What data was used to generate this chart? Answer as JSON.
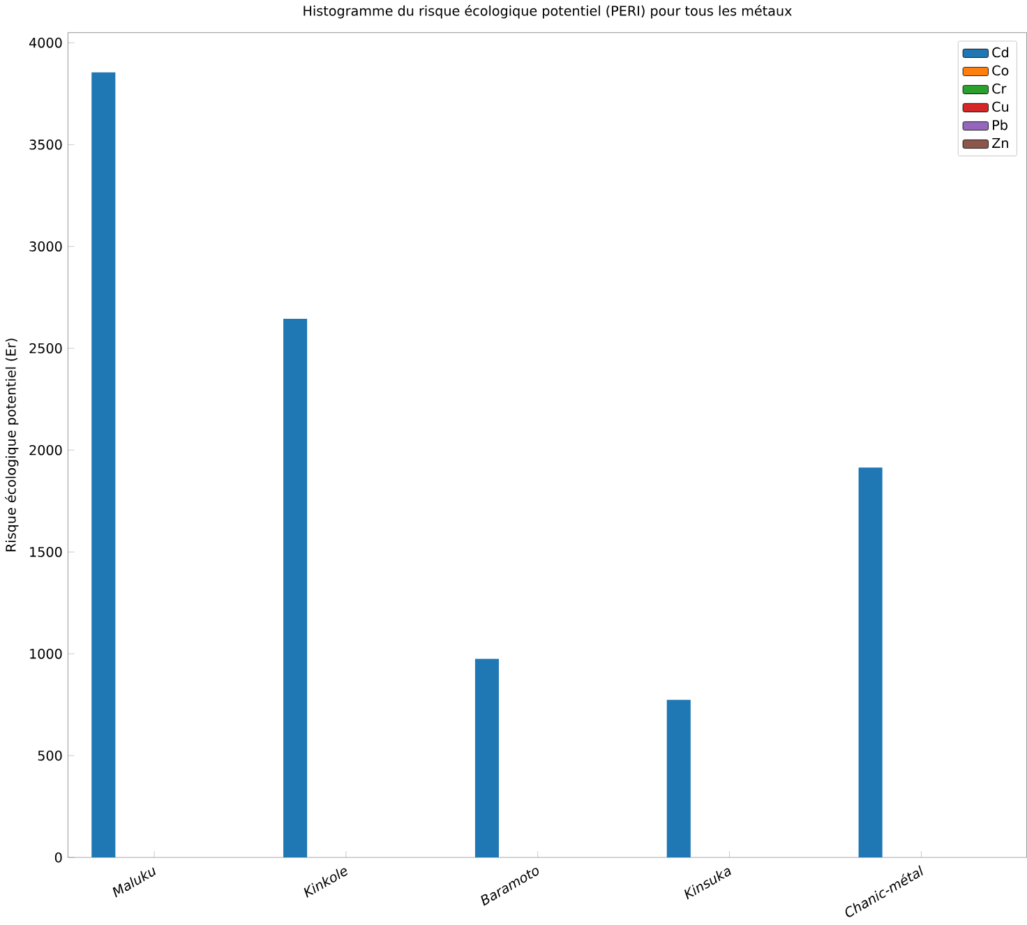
{
  "chart_data": {
    "type": "bar",
    "title": "Histogramme du risque écologique potentiel (PERI) pour tous les métaux",
    "ylabel": "Risque écologique potentiel (Er)",
    "categories": [
      "Maluku",
      "Kinkole",
      "Baramoto",
      "Kinsuka",
      "Chanic-métal"
    ],
    "series": [
      {
        "name": "Cd",
        "color": "#1f77b4",
        "values": [
          3855,
          2645,
          975,
          774,
          1914
        ]
      },
      {
        "name": "Co",
        "color": "#ff7f0e",
        "values": [
          0,
          0,
          0,
          0,
          0
        ]
      },
      {
        "name": "Cr",
        "color": "#2ca02c",
        "values": [
          0,
          0,
          0,
          0,
          0
        ]
      },
      {
        "name": "Cu",
        "color": "#d62728",
        "values": [
          0,
          0,
          0,
          0,
          0
        ]
      },
      {
        "name": "Pb",
        "color": "#9467bd",
        "values": [
          0,
          0,
          0,
          0,
          0
        ]
      },
      {
        "name": "Zn",
        "color": "#8c564b",
        "values": [
          0,
          0,
          0,
          0,
          0
        ]
      }
    ],
    "ylim": [
      0,
      4050
    ],
    "yticks": [
      0,
      500,
      1000,
      1500,
      2000,
      2500,
      3000,
      3500,
      4000
    ],
    "grid": false,
    "legend": "top right"
  }
}
